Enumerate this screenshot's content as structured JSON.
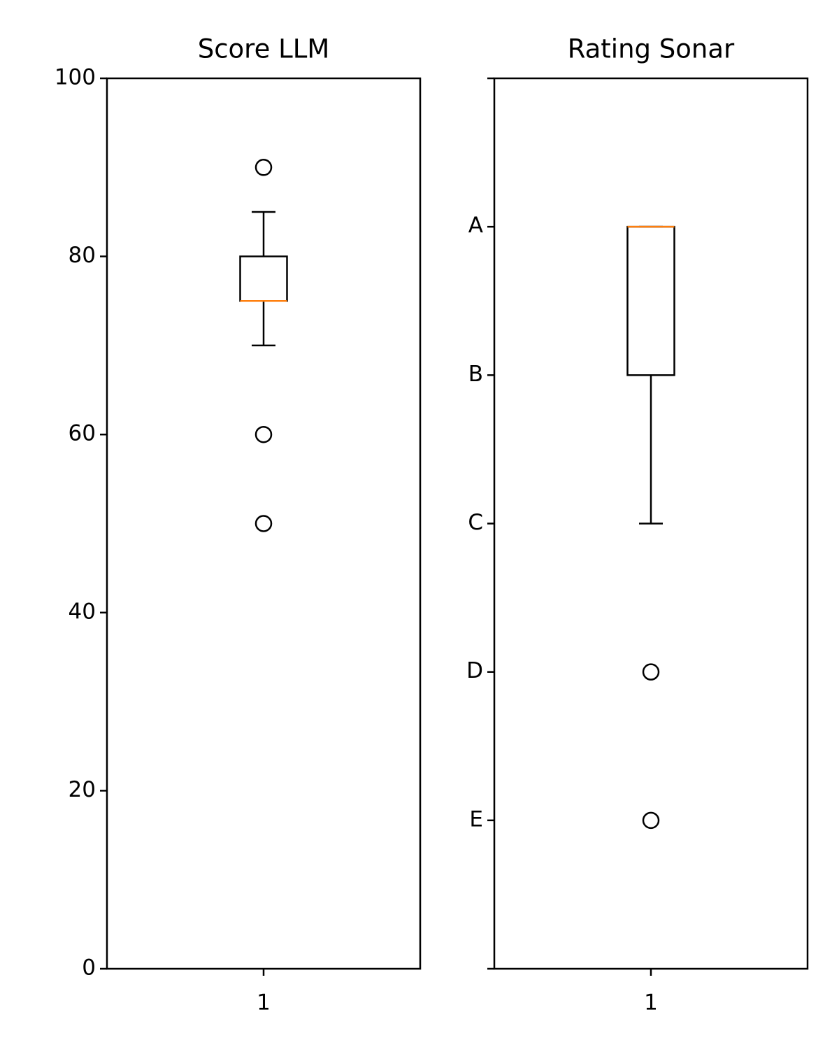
{
  "chart_data": [
    {
      "type": "box",
      "title": "Score LLM",
      "categories": [
        "1"
      ],
      "boxes": [
        {
          "whislo": 70,
          "q1": 75,
          "med": 75,
          "q3": 80,
          "whishi": 85,
          "fliers": [
            90,
            60,
            50
          ]
        }
      ],
      "color": "#000000",
      "median_color": "#ff7f0e",
      "ylim": [
        0,
        100
      ],
      "yticks": [
        0,
        20,
        40,
        60,
        80,
        100
      ]
    },
    {
      "type": "box",
      "title": "Rating Sonar",
      "categories": [
        "1"
      ],
      "boxes": [
        {
          "whislo": 3,
          "q1": 4,
          "med": 5,
          "q3": 5,
          "whishi": 5,
          "fliers": [
            2,
            1
          ]
        }
      ],
      "color": "#000000",
      "median_color": "#ff7f0e",
      "ylim": [
        0,
        6
      ],
      "yticks": [
        {
          "value": 0,
          "label": null
        },
        {
          "value": 1,
          "label": "E"
        },
        {
          "value": 2,
          "label": "D"
        },
        {
          "value": 3,
          "label": "C"
        },
        {
          "value": 4,
          "label": "B"
        },
        {
          "value": 5,
          "label": "A"
        },
        {
          "value": 6,
          "label": null
        }
      ]
    }
  ]
}
